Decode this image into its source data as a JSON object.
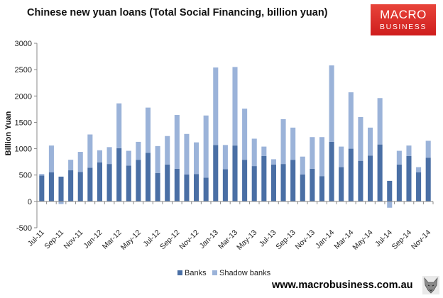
{
  "footer": {
    "url": "www.macrobusiness.com.au"
  },
  "logo": {
    "line1": "MACRO",
    "line2": "BUSINESS",
    "color": "#d42a2a"
  },
  "chart_data": {
    "type": "bar",
    "stacked": true,
    "title": "Chinese new yuan loans (Total Social Financing, billion yuan)",
    "ylabel": "Billion Yuan",
    "xlabel": "",
    "ylim": [
      -500,
      3000
    ],
    "yticks": [
      -500,
      0,
      500,
      1000,
      1500,
      2000,
      2500,
      3000
    ],
    "grid": false,
    "legend": "bottom",
    "categories": [
      "Jul-11",
      "Aug-11",
      "Sep-11",
      "Oct-11",
      "Nov-11",
      "Dec-11",
      "Jan-12",
      "Feb-12",
      "Mar-12",
      "Apr-12",
      "May-12",
      "Jun-12",
      "Jul-12",
      "Aug-12",
      "Sep-12",
      "Oct-12",
      "Nov-12",
      "Dec-12",
      "Jan-13",
      "Feb-13",
      "Mar-13",
      "Apr-13",
      "May-13",
      "Jun-13",
      "Jul-13",
      "Aug-13",
      "Sep-13",
      "Oct-13",
      "Nov-13",
      "Dec-13",
      "Jan-14",
      "Feb-14",
      "Mar-14",
      "Apr-14",
      "May-14",
      "Jun-14",
      "Jul-14",
      "Aug-14",
      "Sep-14",
      "Oct-14",
      "Nov-14"
    ],
    "tick_labels": [
      "Jul-11",
      "Sep-11",
      "Nov-11",
      "Jan-12",
      "Mar-12",
      "May-12",
      "Jul-12",
      "Sep-12",
      "Nov-12",
      "Jan-13",
      "Mar-13",
      "May-13",
      "Jul-13",
      "Sep-13",
      "Nov-13",
      "Jan-14",
      "Mar-14",
      "May-14",
      "Jul-14",
      "Sep-14",
      "Nov-14"
    ],
    "series": [
      {
        "name": "Banks",
        "color": "#4a6fa5",
        "values": [
          490,
          550,
          470,
          590,
          560,
          640,
          740,
          710,
          1010,
          680,
          790,
          920,
          540,
          700,
          620,
          510,
          520,
          450,
          1070,
          610,
          1060,
          790,
          670,
          860,
          700,
          710,
          790,
          510,
          620,
          480,
          1130,
          650,
          1000,
          770,
          870,
          1080,
          390,
          700,
          860,
          550,
          830
        ]
      },
      {
        "name": "Shadow banks",
        "color": "#9bb3d9",
        "values": [
          30,
          510,
          -50,
          200,
          380,
          630,
          230,
          320,
          850,
          280,
          340,
          860,
          510,
          540,
          1020,
          770,
          600,
          1180,
          1470,
          460,
          1490,
          970,
          520,
          180,
          100,
          850,
          610,
          340,
          600,
          740,
          1450,
          390,
          1070,
          830,
          530,
          880,
          -120,
          260,
          200,
          100,
          320
        ]
      }
    ]
  }
}
